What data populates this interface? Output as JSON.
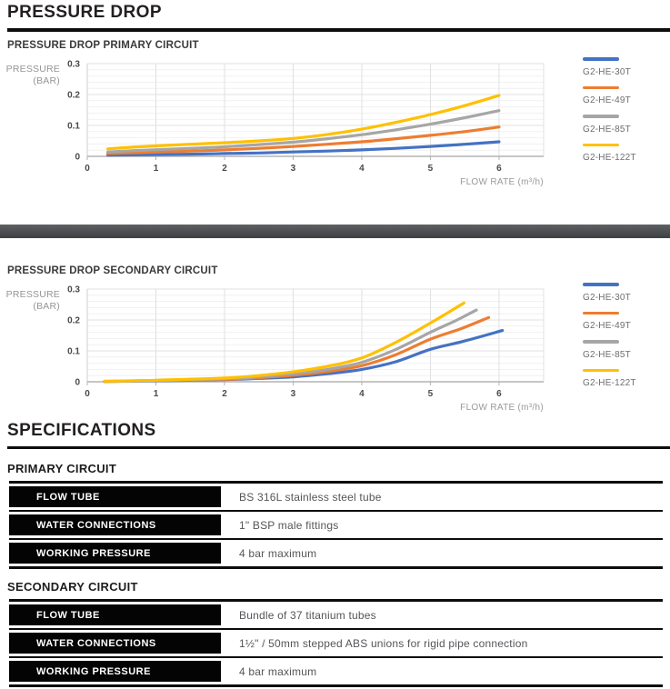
{
  "header": {
    "title": "PRESSURE DROP"
  },
  "colors": {
    "rule": "#0d0d0d",
    "divider_band": "#45484b",
    "table_header_bg": "#040404",
    "table_value_text": "#55565a",
    "axis_text": "#939598",
    "tick_text": "#4a4a4c",
    "legend_text": "#6d6e71",
    "series_blue": "#4472C4",
    "series_orange": "#ED7D31",
    "series_gray": "#A6A6A6",
    "series_yellow": "#FFC000"
  },
  "chart_data": [
    {
      "type": "line",
      "title": "PRESSURE DROP PRIMARY CIRCUIT",
      "ylabel": "PRESSURE (BAR)",
      "ylabel_lines": [
        "PRESSURE",
        "(BAR)"
      ],
      "xlabel": "FLOW RATE (m³/h)",
      "xlim": [
        0,
        6.65
      ],
      "ylim": [
        0,
        0.3
      ],
      "xticks": [
        0,
        1,
        2,
        3,
        4,
        5,
        6
      ],
      "yticks": [
        0,
        0.1,
        0.2,
        0.3
      ],
      "grid": true,
      "legend_position": "right",
      "series": [
        {
          "name": "G2-HE-30T",
          "color": "#4472C4",
          "points": [
            [
              0.3,
              0.004
            ],
            [
              0.75,
              0.005
            ],
            [
              1.5,
              0.007
            ],
            [
              2,
              0.009
            ],
            [
              2.5,
              0.011
            ],
            [
              3,
              0.014
            ],
            [
              3.5,
              0.017
            ],
            [
              4,
              0.021
            ],
            [
              4.5,
              0.026
            ],
            [
              5,
              0.032
            ],
            [
              5.5,
              0.039
            ],
            [
              6,
              0.047
            ]
          ]
        },
        {
          "name": "G2-HE-49T",
          "color": "#ED7D31",
          "points": [
            [
              0.3,
              0.009
            ],
            [
              0.75,
              0.012
            ],
            [
              1.5,
              0.017
            ],
            [
              2,
              0.021
            ],
            [
              2.5,
              0.026
            ],
            [
              3,
              0.032
            ],
            [
              3.5,
              0.039
            ],
            [
              4,
              0.047
            ],
            [
              4.5,
              0.057
            ],
            [
              5,
              0.068
            ],
            [
              5.5,
              0.08
            ],
            [
              6,
              0.095
            ]
          ]
        },
        {
          "name": "G2-HE-85T",
          "color": "#A6A6A6",
          "points": [
            [
              0.3,
              0.014
            ],
            [
              0.75,
              0.019
            ],
            [
              1.5,
              0.026
            ],
            [
              2,
              0.031
            ],
            [
              2.5,
              0.038
            ],
            [
              3,
              0.046
            ],
            [
              3.5,
              0.057
            ],
            [
              4,
              0.07
            ],
            [
              4.5,
              0.086
            ],
            [
              5,
              0.104
            ],
            [
              5.5,
              0.125
            ],
            [
              6,
              0.148
            ]
          ]
        },
        {
          "name": "G2-HE-122T",
          "color": "#FFC000",
          "points": [
            [
              0.3,
              0.024
            ],
            [
              0.75,
              0.031
            ],
            [
              1.5,
              0.039
            ],
            [
              2,
              0.044
            ],
            [
              2.5,
              0.05
            ],
            [
              3,
              0.058
            ],
            [
              3.5,
              0.071
            ],
            [
              4,
              0.088
            ],
            [
              4.5,
              0.11
            ],
            [
              5,
              0.135
            ],
            [
              5.5,
              0.164
            ],
            [
              6,
              0.197
            ]
          ]
        }
      ]
    },
    {
      "type": "line",
      "title": "PRESSURE DROP SECONDARY CIRCUIT",
      "ylabel": "PRESSURE (BAR)",
      "ylabel_lines": [
        "PRESSURE",
        "(BAR)"
      ],
      "xlabel": "FLOW RATE (m³/h)",
      "xlim": [
        0,
        6.65
      ],
      "ylim": [
        0,
        0.3
      ],
      "xticks": [
        0,
        1,
        2,
        3,
        4,
        5,
        6
      ],
      "yticks": [
        0,
        0.1,
        0.2,
        0.3
      ],
      "grid": true,
      "legend_position": "right",
      "series": [
        {
          "name": "G2-HE-30T",
          "color": "#4472C4",
          "points": [
            [
              0.25,
              0.001
            ],
            [
              1,
              0.003
            ],
            [
              2,
              0.007
            ],
            [
              2.5,
              0.011
            ],
            [
              3,
              0.016
            ],
            [
              3.5,
              0.026
            ],
            [
              4,
              0.04
            ],
            [
              4.5,
              0.065
            ],
            [
              5,
              0.105
            ],
            [
              5.5,
              0.132
            ],
            [
              6.05,
              0.166
            ]
          ]
        },
        {
          "name": "G2-HE-49T",
          "color": "#ED7D31",
          "points": [
            [
              0.25,
              0.001
            ],
            [
              1,
              0.004
            ],
            [
              2,
              0.008
            ],
            [
              2.5,
              0.013
            ],
            [
              3,
              0.021
            ],
            [
              3.5,
              0.033
            ],
            [
              4,
              0.052
            ],
            [
              4.5,
              0.088
            ],
            [
              5,
              0.138
            ],
            [
              5.45,
              0.172
            ],
            [
              5.85,
              0.208
            ]
          ]
        },
        {
          "name": "G2-HE-85T",
          "color": "#A6A6A6",
          "points": [
            [
              0.25,
              0.001
            ],
            [
              1,
              0.004
            ],
            [
              2,
              0.01
            ],
            [
              2.5,
              0.016
            ],
            [
              3,
              0.026
            ],
            [
              3.5,
              0.04
            ],
            [
              4,
              0.063
            ],
            [
              4.5,
              0.105
            ],
            [
              5,
              0.16
            ],
            [
              5.35,
              0.196
            ],
            [
              5.67,
              0.232
            ]
          ]
        },
        {
          "name": "G2-HE-122T",
          "color": "#FFC000",
          "points": [
            [
              0.25,
              0.002
            ],
            [
              1,
              0.005
            ],
            [
              2,
              0.012
            ],
            [
              2.5,
              0.02
            ],
            [
              3,
              0.032
            ],
            [
              3.5,
              0.05
            ],
            [
              4,
              0.077
            ],
            [
              4.5,
              0.128
            ],
            [
              5,
              0.19
            ],
            [
              5.25,
              0.223
            ],
            [
              5.49,
              0.255
            ]
          ]
        }
      ]
    }
  ],
  "specifications": {
    "title": "SPECIFICATIONS",
    "sections": [
      {
        "heading": "PRIMARY CIRCUIT",
        "rows": [
          {
            "label": "FLOW TUBE",
            "value": "BS 316L stainless steel tube"
          },
          {
            "label": "WATER CONNECTIONS",
            "value": "1\" BSP male fittings"
          },
          {
            "label": "WORKING PRESSURE",
            "value": "4 bar maximum"
          }
        ]
      },
      {
        "heading": "SECONDARY CIRCUIT",
        "rows": [
          {
            "label": "FLOW TUBE",
            "value": "Bundle of 37 titanium tubes"
          },
          {
            "label": "WATER CONNECTIONS",
            "value": "1½\" / 50mm stepped ABS unions for rigid pipe connection"
          },
          {
            "label": "WORKING PRESSURE",
            "value": "4 bar maximum"
          }
        ]
      }
    ]
  }
}
